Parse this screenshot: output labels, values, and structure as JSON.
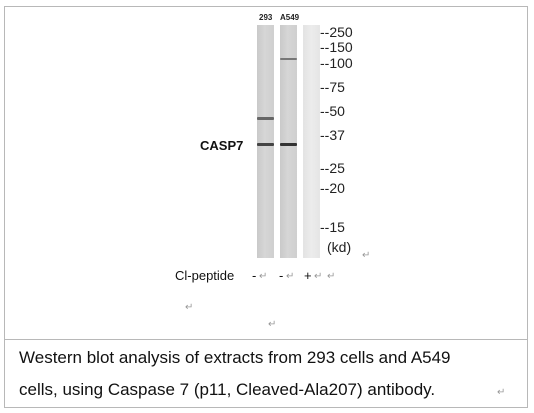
{
  "blot": {
    "lane_labels": [
      "293",
      "A549"
    ],
    "protein_label": "CASP7",
    "markers": [
      "--250",
      "--150",
      "--100",
      "--75",
      "--50",
      "--37",
      "--25",
      "--20",
      "--15"
    ],
    "unit": "(kd)",
    "peptide_label": "Cl-peptide",
    "peptide_signs": [
      "-",
      "-",
      "+"
    ],
    "return_mark": "↵"
  },
  "caption": {
    "line1": "Western blot analysis of extracts from 293 cells and A549",
    "line2": "cells, using Caspase 7 (p11, Cleaved-Ala207) antibody."
  }
}
